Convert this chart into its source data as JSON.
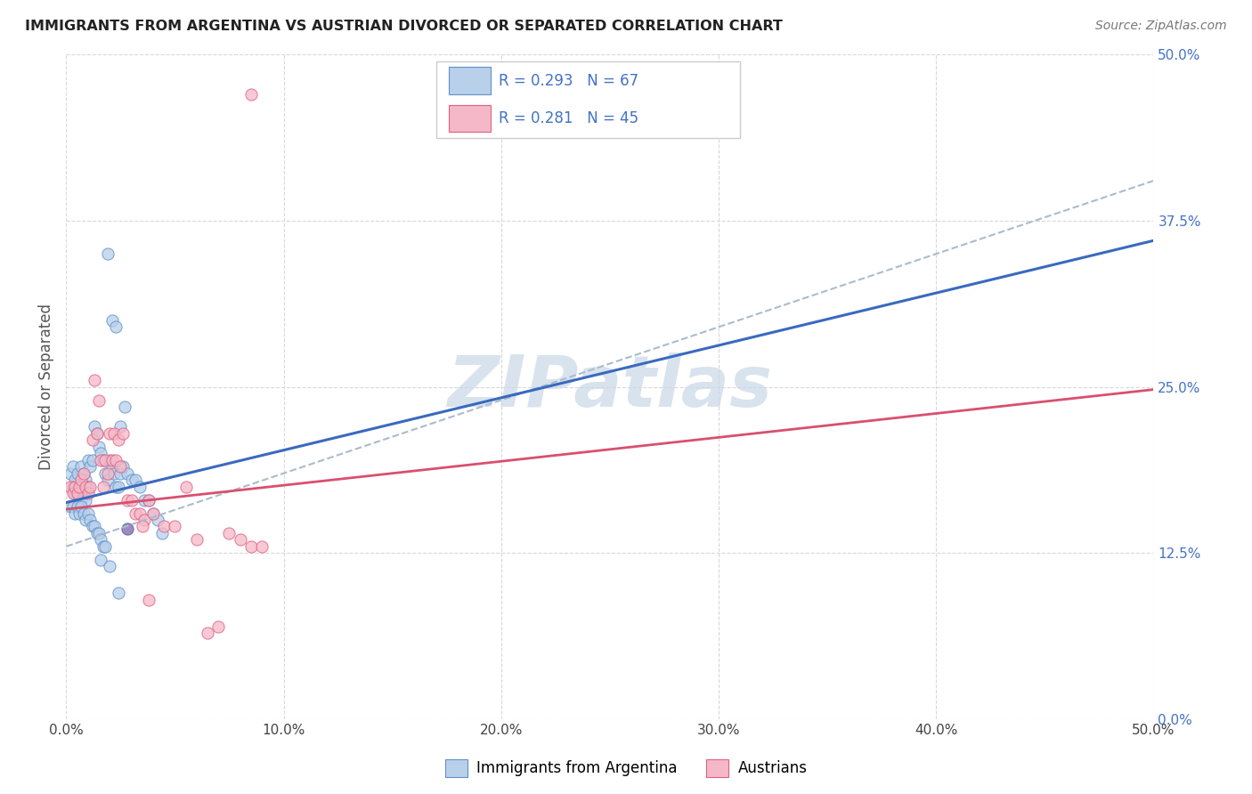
{
  "title": "IMMIGRANTS FROM ARGENTINA VS AUSTRIAN DIVORCED OR SEPARATED CORRELATION CHART",
  "source": "Source: ZipAtlas.com",
  "ylabel": "Divorced or Separated",
  "legend_r1": "R = 0.293",
  "legend_n1": "N = 67",
  "legend_r2": "R = 0.281",
  "legend_n2": "N = 45",
  "legend_label1": "Immigrants from Argentina",
  "legend_label2": "Austrians",
  "color_blue_fill": "#b8d0ea",
  "color_pink_fill": "#f5b8c8",
  "color_blue_edge": "#6090c8",
  "color_pink_edge": "#e06080",
  "color_blue_line": "#3a6abf",
  "color_pink_line": "#d8506e",
  "color_blue_dashed": "#aabccc",
  "color_text_blue": "#4472c4",
  "color_purple_fill": "#8878b8",
  "color_purple_edge": "#6060a0",
  "watermark_color": "#c8d8e8",
  "background": "#ffffff",
  "grid_color": "#d8d8d8",
  "xmin": 0.0,
  "xmax": 0.5,
  "ymin": 0.0,
  "ymax": 0.5,
  "xtick_vals": [
    0.0,
    0.1,
    0.2,
    0.3,
    0.4,
    0.5
  ],
  "ytick_vals": [
    0.0,
    0.125,
    0.25,
    0.375,
    0.5
  ],
  "blue_line_x": [
    0.0,
    0.5
  ],
  "blue_line_y": [
    0.163,
    0.36
  ],
  "pink_line_x": [
    0.0,
    0.5
  ],
  "pink_line_y": [
    0.158,
    0.248
  ],
  "dashed_line_x": [
    0.0,
    0.5
  ],
  "dashed_line_y": [
    0.13,
    0.405
  ],
  "blue_pts_x": [
    0.002,
    0.003,
    0.004,
    0.005,
    0.006,
    0.007,
    0.008,
    0.009,
    0.01,
    0.011,
    0.012,
    0.013,
    0.014,
    0.015,
    0.016,
    0.017,
    0.018,
    0.019,
    0.02,
    0.021,
    0.022,
    0.023,
    0.024,
    0.025,
    0.003,
    0.004,
    0.005,
    0.006,
    0.007,
    0.008,
    0.009,
    0.01,
    0.002,
    0.003,
    0.004,
    0.005,
    0.006,
    0.007,
    0.008,
    0.009,
    0.01,
    0.011,
    0.012,
    0.013,
    0.014,
    0.015,
    0.016,
    0.017,
    0.018,
    0.026,
    0.028,
    0.03,
    0.032,
    0.034,
    0.036,
    0.038,
    0.04,
    0.042,
    0.044,
    0.019,
    0.021,
    0.023,
    0.025,
    0.027,
    0.016,
    0.02,
    0.024
  ],
  "blue_pts_y": [
    0.185,
    0.19,
    0.18,
    0.185,
    0.175,
    0.19,
    0.185,
    0.18,
    0.195,
    0.19,
    0.195,
    0.22,
    0.215,
    0.205,
    0.2,
    0.195,
    0.185,
    0.18,
    0.195,
    0.19,
    0.185,
    0.175,
    0.175,
    0.185,
    0.175,
    0.17,
    0.17,
    0.165,
    0.165,
    0.17,
    0.165,
    0.175,
    0.16,
    0.16,
    0.155,
    0.16,
    0.155,
    0.16,
    0.155,
    0.15,
    0.155,
    0.15,
    0.145,
    0.145,
    0.14,
    0.14,
    0.135,
    0.13,
    0.13,
    0.19,
    0.185,
    0.18,
    0.18,
    0.175,
    0.165,
    0.165,
    0.155,
    0.15,
    0.14,
    0.35,
    0.3,
    0.295,
    0.22,
    0.235,
    0.12,
    0.115,
    0.095
  ],
  "pink_pts_x": [
    0.002,
    0.003,
    0.004,
    0.005,
    0.006,
    0.007,
    0.008,
    0.009,
    0.01,
    0.011,
    0.012,
    0.013,
    0.014,
    0.015,
    0.016,
    0.017,
    0.018,
    0.019,
    0.02,
    0.021,
    0.022,
    0.023,
    0.024,
    0.025,
    0.026,
    0.028,
    0.03,
    0.032,
    0.034,
    0.036,
    0.038,
    0.04,
    0.045,
    0.05,
    0.055,
    0.06,
    0.065,
    0.07,
    0.075,
    0.08,
    0.085,
    0.09,
    0.035,
    0.038,
    0.085
  ],
  "pink_pts_y": [
    0.175,
    0.17,
    0.175,
    0.17,
    0.175,
    0.18,
    0.185,
    0.175,
    0.17,
    0.175,
    0.21,
    0.255,
    0.215,
    0.24,
    0.195,
    0.175,
    0.195,
    0.185,
    0.215,
    0.195,
    0.215,
    0.195,
    0.21,
    0.19,
    0.215,
    0.165,
    0.165,
    0.155,
    0.155,
    0.15,
    0.165,
    0.155,
    0.145,
    0.145,
    0.175,
    0.135,
    0.065,
    0.07,
    0.14,
    0.135,
    0.13,
    0.13,
    0.145,
    0.09,
    0.47
  ],
  "purple_pt_x": [
    0.028
  ],
  "purple_pt_y": [
    0.143
  ]
}
